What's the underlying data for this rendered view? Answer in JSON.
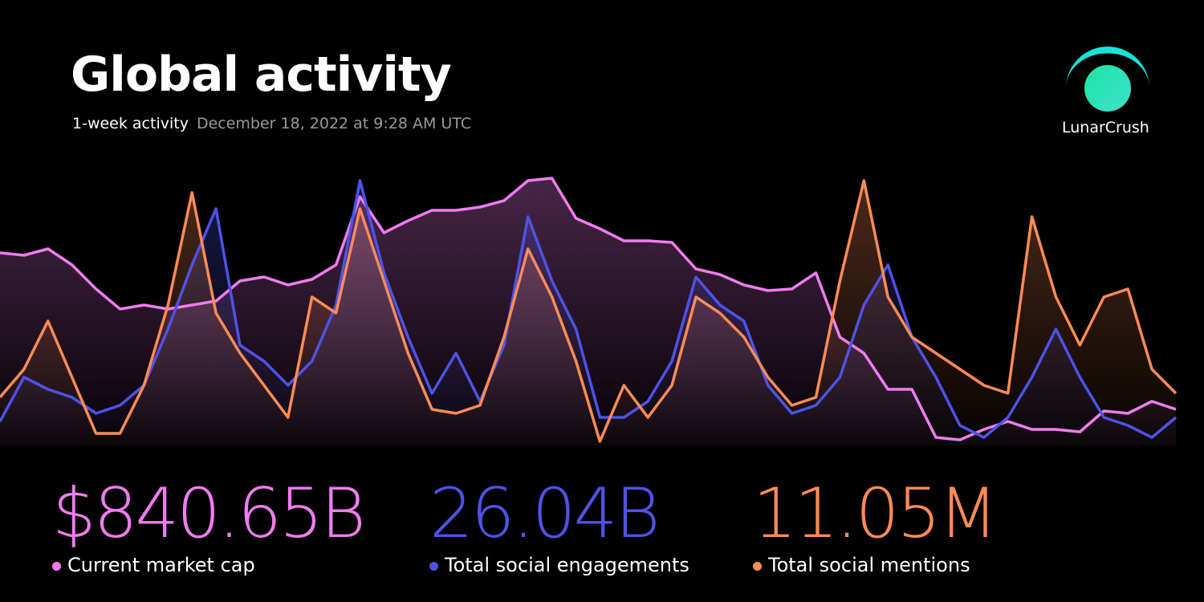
{
  "header": {
    "title": "Global activity",
    "subtitle": "1-week activity",
    "date": "December 18, 2022 at 9:28 AM UTC"
  },
  "brand": "LunarCrush",
  "chart_data": {
    "type": "line",
    "series": [
      {
        "name": "Current market cap",
        "total": "$840.65B",
        "color": "#f07cf0",
        "values": [
          240,
          237,
          245,
          225,
          195,
          170,
          175,
          170,
          175,
          180,
          205,
          210,
          200,
          207,
          225,
          310,
          265,
          280,
          293,
          293,
          297,
          305,
          330,
          333,
          283,
          270,
          255,
          255,
          253,
          220,
          213,
          200,
          193,
          195,
          215,
          135,
          115,
          70,
          70,
          10,
          7,
          20,
          30,
          20,
          20,
          17,
          43,
          40,
          55,
          45
        ]
      },
      {
        "name": "Total social engagements",
        "total": "26.04B",
        "color": "#4f52e6",
        "values": [
          30,
          85,
          70,
          60,
          40,
          50,
          75,
          145,
          225,
          295,
          125,
          105,
          75,
          105,
          175,
          330,
          215,
          135,
          65,
          115,
          55,
          125,
          285,
          205,
          145,
          35,
          35,
          55,
          105,
          210,
          175,
          155,
          75,
          40,
          50,
          85,
          175,
          225,
          135,
          85,
          25,
          10,
          35,
          85,
          145,
          85,
          35,
          25,
          10,
          35
        ]
      },
      {
        "name": "Total social mentions",
        "total": "11.05M",
        "color": "#ff8b55",
        "values": [
          60,
          95,
          155,
          85,
          15,
          15,
          75,
          175,
          315,
          165,
          115,
          75,
          35,
          185,
          165,
          295,
          205,
          115,
          45,
          40,
          50,
          135,
          245,
          185,
          105,
          5,
          75,
          35,
          75,
          185,
          165,
          135,
          85,
          50,
          60,
          205,
          330,
          185,
          135,
          115,
          95,
          75,
          65,
          285,
          185,
          125,
          185,
          195,
          95,
          65
        ]
      }
    ]
  }
}
